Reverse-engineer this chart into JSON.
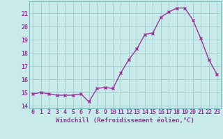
{
  "x": [
    0,
    1,
    2,
    3,
    4,
    5,
    6,
    7,
    8,
    9,
    10,
    11,
    12,
    13,
    14,
    15,
    16,
    17,
    18,
    19,
    20,
    21,
    22,
    23
  ],
  "y": [
    14.9,
    15.0,
    14.9,
    14.8,
    14.8,
    14.8,
    14.9,
    14.3,
    15.3,
    15.4,
    15.3,
    16.5,
    17.5,
    18.3,
    19.4,
    19.5,
    20.7,
    21.1,
    21.4,
    21.4,
    20.5,
    19.1,
    17.5,
    16.4
  ],
  "line_color": "#993399",
  "marker": "x",
  "marker_size": 3,
  "bg_color": "#c8eaea",
  "grid_color": "#a0cccc",
  "xlabel": "Windchill (Refroidissement éolien,°C)",
  "xlabel_color": "#993399",
  "ylabel_ticks": [
    14,
    15,
    16,
    17,
    18,
    19,
    20,
    21
  ],
  "ylim": [
    13.8,
    21.9
  ],
  "xlim": [
    -0.5,
    23.5
  ],
  "tick_color": "#993399",
  "tick_fontsize": 6,
  "xlabel_fontsize": 6.5,
  "line_width": 1.0,
  "border_color": "#7ab8b8"
}
